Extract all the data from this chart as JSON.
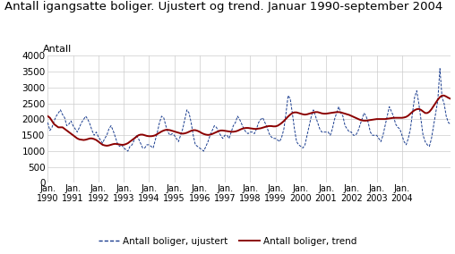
{
  "title": "Antall igangsatte boliger. Ujustert og trend. Januar 1990-september 2004",
  "ylabel": "Antall",
  "ylim": [
    0,
    4000
  ],
  "yticks": [
    0,
    500,
    1000,
    1500,
    2000,
    2500,
    3000,
    3500,
    4000
  ],
  "legend_ujustert": "Antall boliger, ujustert",
  "legend_trend": "Antall boliger, trend",
  "color_ujustert": "#1a3d8f",
  "color_trend": "#8B0000",
  "background_color": "#ffffff",
  "grid_color": "#cccccc",
  "title_fontsize": 9.5,
  "axis_fontsize": 8,
  "tick_fontsize": 7.5,
  "ujustert": [
    1900,
    1650,
    1750,
    1950,
    2100,
    2200,
    2300,
    2150,
    2050,
    1800,
    1850,
    1950,
    1800,
    1700,
    1600,
    1750,
    1900,
    2000,
    2100,
    2000,
    1850,
    1650,
    1500,
    1600,
    1450,
    1350,
    1250,
    1400,
    1500,
    1700,
    1800,
    1650,
    1450,
    1250,
    1150,
    1200,
    1100,
    1050,
    1000,
    1150,
    1200,
    1350,
    1500,
    1400,
    1250,
    1100,
    1100,
    1200,
    1200,
    1150,
    1100,
    1350,
    1600,
    1900,
    2100,
    2050,
    1800,
    1600,
    1500,
    1550,
    1500,
    1400,
    1300,
    1500,
    1700,
    2000,
    2300,
    2200,
    1900,
    1500,
    1200,
    1150,
    1100,
    1050,
    1000,
    1150,
    1300,
    1500,
    1650,
    1800,
    1750,
    1600,
    1500,
    1400,
    1500,
    1500,
    1400,
    1600,
    1800,
    1900,
    2100,
    2000,
    1850,
    1700,
    1600,
    1550,
    1600,
    1600,
    1550,
    1700,
    1900,
    2000,
    2050,
    1900,
    1750,
    1550,
    1450,
    1400,
    1400,
    1350,
    1300,
    1450,
    1700,
    2200,
    2750,
    2650,
    2200,
    1700,
    1300,
    1200,
    1150,
    1100,
    1200,
    1500,
    1800,
    2100,
    2300,
    2100,
    1900,
    1700,
    1600,
    1600,
    1600,
    1600,
    1500,
    1700,
    2000,
    2200,
    2400,
    2200,
    2100,
    1800,
    1700,
    1600,
    1600,
    1500,
    1500,
    1600,
    1800,
    2000,
    2200,
    2100,
    1900,
    1600,
    1500,
    1500,
    1500,
    1400,
    1300,
    1500,
    1800,
    2100,
    2400,
    2250,
    2100,
    1850,
    1750,
    1700,
    1500,
    1300,
    1200,
    1400,
    1700,
    2200,
    2700,
    2900,
    2500,
    2000,
    1500,
    1300,
    1200,
    1150,
    1400,
    1800,
    2200,
    2600,
    3600,
    2700,
    2500,
    2100,
    1900,
    1850
  ],
  "trend": [
    2100,
    2050,
    1950,
    1850,
    1800,
    1750,
    1750,
    1750,
    1700,
    1650,
    1600,
    1550,
    1500,
    1450,
    1400,
    1370,
    1360,
    1350,
    1360,
    1380,
    1400,
    1400,
    1380,
    1350,
    1300,
    1250,
    1200,
    1180,
    1170,
    1180,
    1200,
    1220,
    1230,
    1220,
    1210,
    1200,
    1200,
    1220,
    1250,
    1300,
    1350,
    1400,
    1450,
    1500,
    1520,
    1520,
    1500,
    1480,
    1470,
    1470,
    1480,
    1500,
    1540,
    1580,
    1620,
    1650,
    1670,
    1670,
    1660,
    1640,
    1620,
    1600,
    1580,
    1560,
    1550,
    1560,
    1580,
    1610,
    1640,
    1660,
    1660,
    1640,
    1610,
    1570,
    1540,
    1520,
    1510,
    1520,
    1540,
    1570,
    1600,
    1630,
    1650,
    1650,
    1640,
    1630,
    1620,
    1610,
    1610,
    1620,
    1640,
    1670,
    1700,
    1720,
    1730,
    1730,
    1720,
    1710,
    1700,
    1700,
    1710,
    1720,
    1740,
    1760,
    1780,
    1790,
    1790,
    1780,
    1780,
    1800,
    1840,
    1890,
    1950,
    2020,
    2090,
    2150,
    2200,
    2220,
    2220,
    2200,
    2180,
    2160,
    2150,
    2160,
    2180,
    2200,
    2220,
    2230,
    2230,
    2210,
    2190,
    2180,
    2180,
    2190,
    2200,
    2210,
    2220,
    2230,
    2230,
    2220,
    2200,
    2180,
    2160,
    2140,
    2110,
    2080,
    2050,
    2020,
    1990,
    1970,
    1960,
    1960,
    1970,
    1980,
    1990,
    2000,
    2010,
    2010,
    2010,
    2010,
    2010,
    2020,
    2030,
    2040,
    2050,
    2050,
    2050,
    2050,
    2050,
    2060,
    2080,
    2120,
    2180,
    2240,
    2290,
    2320,
    2330,
    2300,
    2250,
    2200,
    2200,
    2240,
    2320,
    2420,
    2520,
    2620,
    2700,
    2750,
    2750,
    2720,
    2680,
    2650
  ],
  "x_tick_positions": [
    0,
    12,
    24,
    36,
    48,
    60,
    72,
    84,
    96,
    108,
    120,
    132,
    144,
    156,
    168
  ],
  "x_tick_labels": [
    "Jan.\n1990",
    "Jan.\n1991",
    "Jan.\n1992",
    "Jan.\n1993",
    "Jan.\n1994",
    "Jan.\n1995",
    "Jan.\n1996",
    "Jan.\n1997",
    "Jan.\n1998",
    "Jan.\n1999",
    "Jan.\n2000",
    "Jan.\n2001",
    "Jan.\n2002",
    "Jan.\n2003",
    "Jan.\n2004"
  ]
}
